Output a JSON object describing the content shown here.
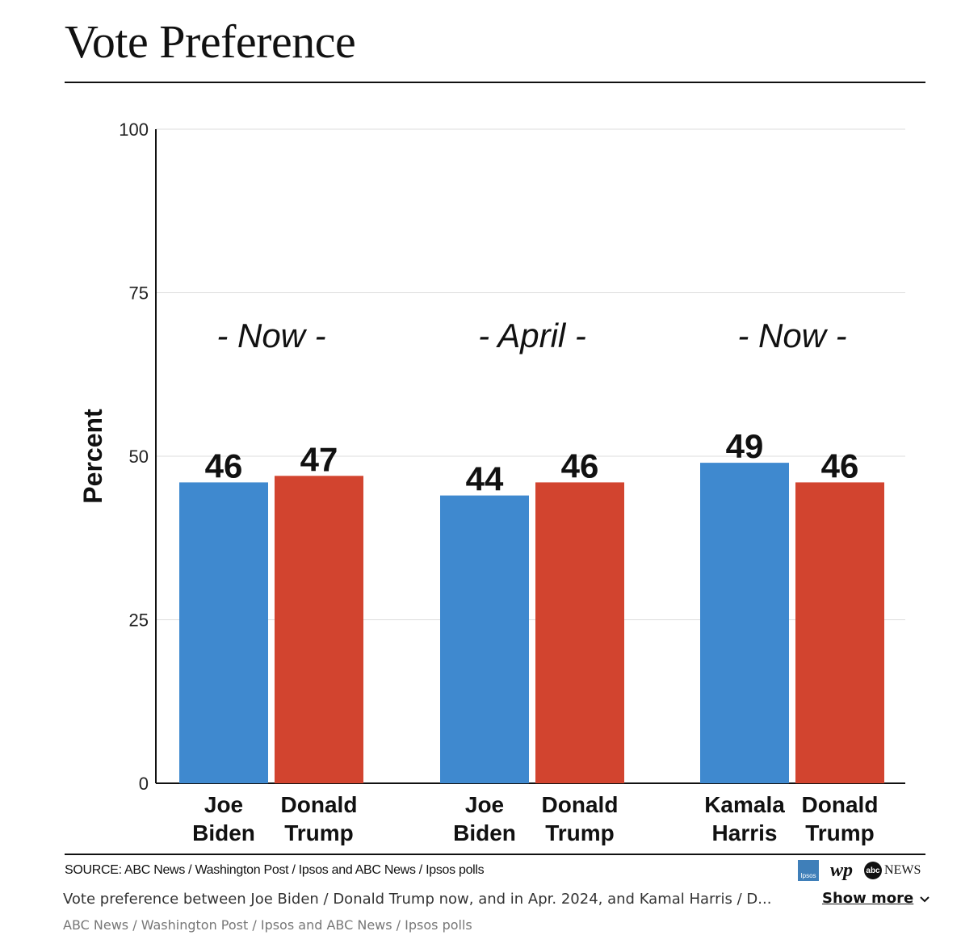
{
  "colors": {
    "biden_blue": "#3f89cf",
    "trump_red": "#d2442f",
    "harris_blue": "#3f89cf",
    "gridline": "#dddddd",
    "axis": "#111111"
  },
  "chart_data": {
    "type": "bar",
    "title": "Vote Preference",
    "ylabel": "Percent",
    "ylim": [
      0,
      100
    ],
    "yticks": [
      0,
      25,
      50,
      75,
      100
    ],
    "grid": true,
    "groups": [
      {
        "label": "- Now -",
        "bars": [
          {
            "name": [
              "Joe",
              "Biden"
            ],
            "value": 46,
            "color": "#3f89cf"
          },
          {
            "name": [
              "Donald",
              "Trump"
            ],
            "value": 47,
            "color": "#d2442f"
          }
        ]
      },
      {
        "label": "- April -",
        "bars": [
          {
            "name": [
              "Joe",
              "Biden"
            ],
            "value": 44,
            "color": "#3f89cf"
          },
          {
            "name": [
              "Donald",
              "Trump"
            ],
            "value": 46,
            "color": "#d2442f"
          }
        ]
      },
      {
        "label": "- Now -",
        "bars": [
          {
            "name": [
              "Kamala",
              "Harris"
            ],
            "value": 49,
            "color": "#3f89cf"
          },
          {
            "name": [
              "Donald",
              "Trump"
            ],
            "value": 46,
            "color": "#d2442f"
          }
        ]
      }
    ]
  },
  "source": "SOURCE: ABC News / Washington Post / Ipsos and ABC News / Ipsos polls",
  "logos": {
    "ipsos": "Ipsos",
    "wp": "wp",
    "abc_mark": "abc",
    "abc_news": "NEWS"
  },
  "caption": "Vote preference between Joe Biden / Donald Trump now, and in Apr. 2024, and Kamal Harris / D...",
  "show_more": "Show more",
  "credit": "ABC News / Washington Post / Ipsos and ABC News / Ipsos polls"
}
